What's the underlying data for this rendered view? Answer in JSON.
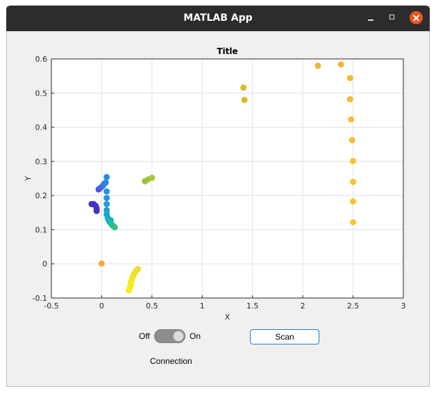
{
  "window": {
    "title": "MATLAB App"
  },
  "controls": {
    "switch_off_label": "Off",
    "switch_on_label": "On",
    "switch_state": "On",
    "switch_caption": "Connection",
    "scan_label": "Scan"
  },
  "chart_data": {
    "type": "scatter",
    "title": "Title",
    "xlabel": "X",
    "ylabel": "Y",
    "xlim": [
      -0.5,
      3
    ],
    "ylim": [
      -0.1,
      0.6
    ],
    "xticks": [
      -0.5,
      0,
      0.5,
      1,
      1.5,
      2,
      2.5,
      3
    ],
    "xtick_labels": [
      "-0.5",
      "0",
      "0.5",
      "1",
      "1.5",
      "2",
      "2.5",
      "3"
    ],
    "yticks": [
      -0.1,
      0,
      0.1,
      0.2,
      0.3,
      0.4,
      0.5,
      0.6
    ],
    "ytick_labels": [
      "-0.1",
      "0",
      "0.1",
      "0.2",
      "0.3",
      "0.4",
      "0.5",
      "0.6"
    ],
    "grid": true,
    "box": true,
    "points": [
      {
        "x": -0.1,
        "y": 0.175,
        "color": "#4a2fc4"
      },
      {
        "x": -0.08,
        "y": 0.175,
        "color": "#4a2fc4"
      },
      {
        "x": -0.06,
        "y": 0.17,
        "color": "#4a2fc4"
      },
      {
        "x": -0.05,
        "y": 0.163,
        "color": "#4a2fc4"
      },
      {
        "x": -0.05,
        "y": 0.155,
        "color": "#4a2fc4"
      },
      {
        "x": -0.03,
        "y": 0.218,
        "color": "#4b50e6"
      },
      {
        "x": -0.01,
        "y": 0.223,
        "color": "#4462ec"
      },
      {
        "x": 0.01,
        "y": 0.228,
        "color": "#3a6ff0"
      },
      {
        "x": 0.02,
        "y": 0.232,
        "color": "#3478f0"
      },
      {
        "x": 0.03,
        "y": 0.236,
        "color": "#2f80ee"
      },
      {
        "x": 0.04,
        "y": 0.238,
        "color": "#2c86ea"
      },
      {
        "x": 0.05,
        "y": 0.254,
        "color": "#298ce6"
      },
      {
        "x": 0.05,
        "y": 0.212,
        "color": "#2593e3"
      },
      {
        "x": 0.05,
        "y": 0.193,
        "color": "#2197e0"
      },
      {
        "x": 0.05,
        "y": 0.175,
        "color": "#1e9cdc"
      },
      {
        "x": 0.05,
        "y": 0.157,
        "color": "#1ba0d8"
      },
      {
        "x": 0.05,
        "y": 0.145,
        "color": "#18a5d2"
      },
      {
        "x": 0.06,
        "y": 0.135,
        "color": "#15aacb"
      },
      {
        "x": 0.07,
        "y": 0.128,
        "color": "#14aec4"
      },
      {
        "x": 0.08,
        "y": 0.122,
        "color": "#17b3bb"
      },
      {
        "x": 0.09,
        "y": 0.128,
        "color": "#1ab6b0"
      },
      {
        "x": 0.1,
        "y": 0.115,
        "color": "#20b9a4"
      },
      {
        "x": 0.11,
        "y": 0.112,
        "color": "#27bb98"
      },
      {
        "x": 0.12,
        "y": 0.11,
        "color": "#2ebd8c"
      },
      {
        "x": 0.13,
        "y": 0.107,
        "color": "#34bf80"
      },
      {
        "x": 0.43,
        "y": 0.242,
        "color": "#98c33a"
      },
      {
        "x": 0.46,
        "y": 0.247,
        "color": "#a1c335"
      },
      {
        "x": 0.5,
        "y": 0.252,
        "color": "#abc432"
      },
      {
        "x": 0.0,
        "y": 0.001,
        "color": "#f0ad3a"
      },
      {
        "x": 0.36,
        "y": -0.015,
        "color": "#eedc2e"
      },
      {
        "x": 0.34,
        "y": -0.022,
        "color": "#efde2a"
      },
      {
        "x": 0.32,
        "y": -0.03,
        "color": "#f1e126"
      },
      {
        "x": 0.31,
        "y": -0.038,
        "color": "#f2e423"
      },
      {
        "x": 0.3,
        "y": -0.046,
        "color": "#f4e71f"
      },
      {
        "x": 0.29,
        "y": -0.054,
        "color": "#f6e91c"
      },
      {
        "x": 0.29,
        "y": -0.062,
        "color": "#f7eb19"
      },
      {
        "x": 0.28,
        "y": -0.07,
        "color": "#f8ed16"
      },
      {
        "x": 0.27,
        "y": -0.077,
        "color": "#f9ee14"
      },
      {
        "x": 1.41,
        "y": 0.516,
        "color": "#dcb928"
      },
      {
        "x": 1.42,
        "y": 0.48,
        "color": "#dcb928"
      },
      {
        "x": 2.15,
        "y": 0.58,
        "color": "#f2b435"
      },
      {
        "x": 2.38,
        "y": 0.584,
        "color": "#f2b735"
      },
      {
        "x": 2.47,
        "y": 0.544,
        "color": "#f3b935"
      },
      {
        "x": 2.47,
        "y": 0.482,
        "color": "#f4bb34"
      },
      {
        "x": 2.48,
        "y": 0.423,
        "color": "#f5bd33"
      },
      {
        "x": 2.49,
        "y": 0.362,
        "color": "#f6bf32"
      },
      {
        "x": 2.5,
        "y": 0.301,
        "color": "#f7c131"
      },
      {
        "x": 2.5,
        "y": 0.24,
        "color": "#f8c330"
      },
      {
        "x": 2.5,
        "y": 0.183,
        "color": "#f9c52f"
      },
      {
        "x": 2.5,
        "y": 0.122,
        "color": "#fac72e"
      }
    ]
  }
}
